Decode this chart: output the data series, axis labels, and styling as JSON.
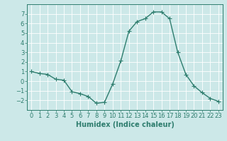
{
  "x": [
    0,
    1,
    2,
    3,
    4,
    5,
    6,
    7,
    8,
    9,
    10,
    11,
    12,
    13,
    14,
    15,
    16,
    17,
    18,
    19,
    20,
    21,
    22,
    23
  ],
  "y": [
    1.0,
    0.8,
    0.7,
    0.2,
    0.1,
    -1.1,
    -1.3,
    -1.6,
    -2.3,
    -2.2,
    -0.3,
    2.1,
    5.2,
    6.2,
    6.5,
    7.2,
    7.2,
    6.5,
    3.0,
    0.7,
    -0.5,
    -1.2,
    -1.8,
    -2.1
  ],
  "line_color": "#2e7d6e",
  "marker": "+",
  "marker_size": 4,
  "bg_color": "#cce8e8",
  "grid_color": "#ffffff",
  "xlabel": "Humidex (Indice chaleur)",
  "ylim": [
    -3,
    8
  ],
  "xlim": [
    -0.5,
    23.5
  ],
  "yticks": [
    -2,
    -1,
    0,
    1,
    2,
    3,
    4,
    5,
    6,
    7
  ],
  "xticks": [
    0,
    1,
    2,
    3,
    4,
    5,
    6,
    7,
    8,
    9,
    10,
    11,
    12,
    13,
    14,
    15,
    16,
    17,
    18,
    19,
    20,
    21,
    22,
    23
  ],
  "tick_label_fontsize": 6,
  "xlabel_fontsize": 7,
  "line_width": 1.0,
  "axis_color": "#2e7d6e",
  "tick_color": "#2e7d6e"
}
